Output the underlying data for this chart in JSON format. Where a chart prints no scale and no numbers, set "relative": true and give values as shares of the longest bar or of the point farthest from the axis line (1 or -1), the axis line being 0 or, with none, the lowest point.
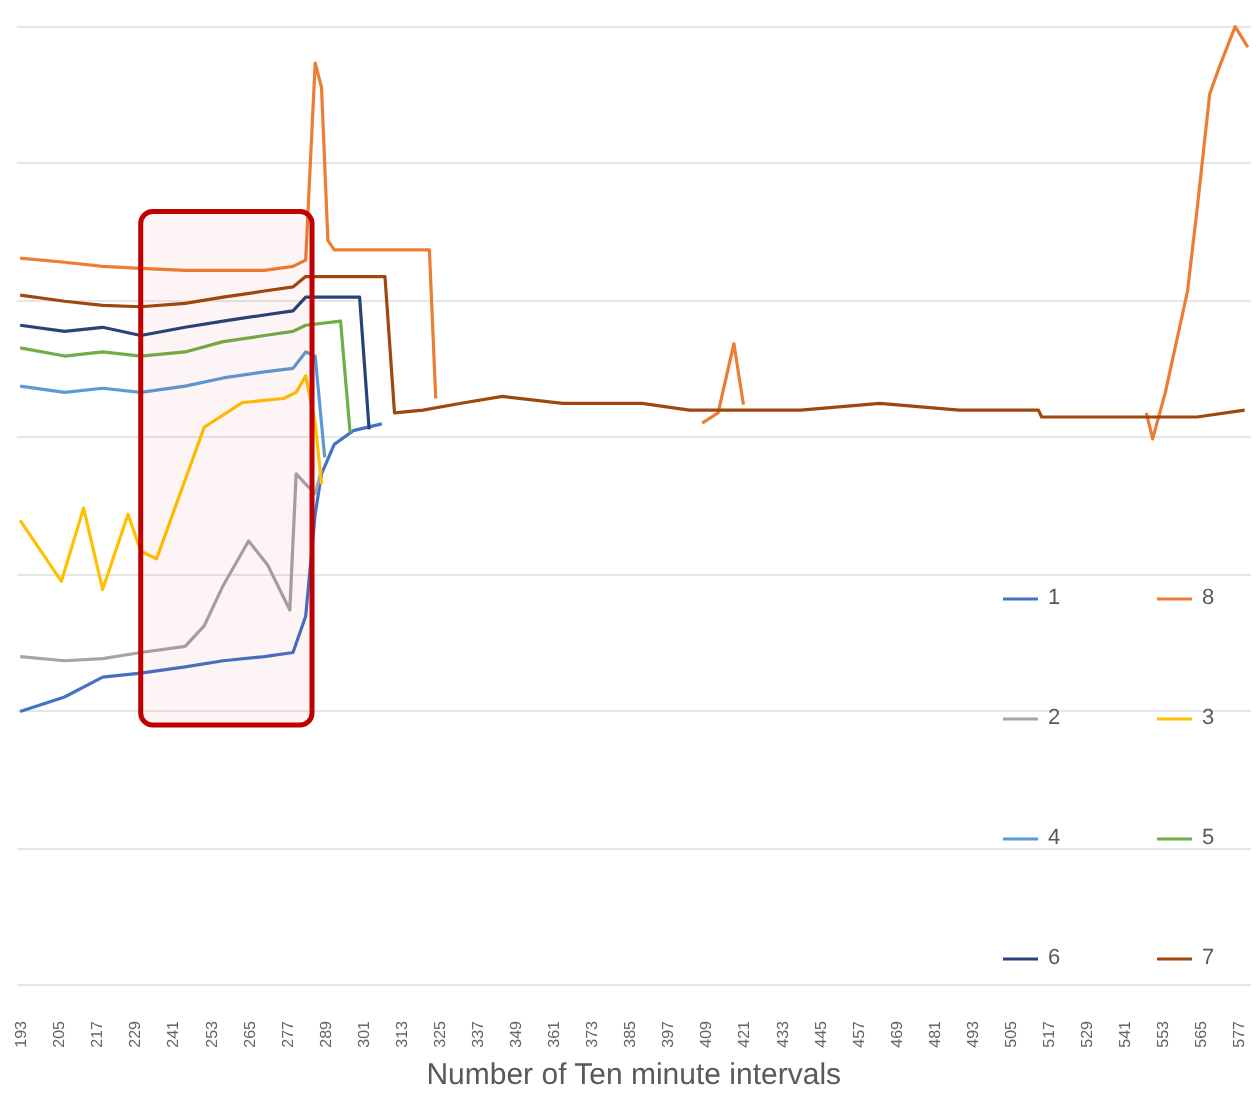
{
  "chart_data": {
    "type": "line",
    "relative": true,
    "xlabel": "Number of Ten minute intervals",
    "xlim": [
      192,
      581
    ],
    "xticks": [
      193,
      205,
      217,
      229,
      241,
      253,
      265,
      277,
      289,
      301,
      313,
      325,
      337,
      349,
      361,
      373,
      385,
      397,
      409,
      421,
      433,
      445,
      457,
      469,
      481,
      493,
      505,
      517,
      529,
      541,
      553,
      565,
      577
    ],
    "grid": "y",
    "legend": "bottom right",
    "bands": [
      {
        "axis": "x",
        "from": 231,
        "to": 285,
        "color": "#c00000"
      }
    ],
    "series": [
      {
        "name": "1",
        "color": "#4472c4",
        "x": [
          193,
          207,
          219,
          231,
          245,
          257,
          270,
          279,
          283,
          286,
          288,
          292,
          298,
          307
        ],
        "values": [
          0.0,
          0.021,
          0.05,
          0.056,
          0.065,
          0.074,
          0.08,
          0.086,
          0.139,
          0.288,
          0.347,
          0.39,
          0.41,
          0.42
        ]
      },
      {
        "name": "8",
        "color": "#ed7d31",
        "x": [
          193,
          207,
          219,
          231,
          245,
          257,
          270,
          279,
          283,
          286,
          288,
          290,
          292,
          322,
          324,
          332,
          404,
          408,
          413,
          418,
          421,
          439,
          546,
          548,
          550,
          554,
          561,
          564,
          568,
          571,
          576,
          580
        ],
        "values": [
          0.662,
          0.656,
          0.65,
          0.647,
          0.644,
          0.644,
          0.644,
          0.65,
          0.659,
          0.947,
          0.911,
          0.688,
          0.674,
          0.674,
          0.457,
          null,
          null,
          0.421,
          0.436,
          0.537,
          0.448,
          null,
          null,
          0.436,
          0.398,
          0.466,
          0.614,
          0.733,
          0.902,
          0.941,
          1.0,
          0.97
        ]
      },
      {
        "name": "2",
        "color": "#a5a5a5",
        "x": [
          193,
          207,
          219,
          231,
          245,
          251,
          257,
          265,
          271,
          278,
          280,
          283,
          286,
          288
        ],
        "values": [
          0.08,
          0.074,
          0.077,
          0.086,
          0.095,
          0.125,
          0.184,
          0.249,
          0.214,
          0.148,
          0.347,
          0.332,
          0.318,
          0.353
        ]
      },
      {
        "name": "3",
        "color": "#ffc000",
        "x": [
          193,
          206,
          213,
          219,
          227,
          231,
          236,
          245,
          251,
          263,
          276,
          280,
          283,
          286,
          288
        ],
        "values": [
          0.279,
          0.19,
          0.297,
          0.178,
          0.288,
          0.234,
          0.223,
          0.338,
          0.415,
          0.451,
          0.457,
          0.466,
          0.49,
          0.421,
          0.332
        ]
      },
      {
        "name": "4",
        "color": "#5b9bd5",
        "x": [
          193,
          207,
          219,
          231,
          245,
          257,
          270,
          279,
          283,
          286,
          289
        ],
        "values": [
          0.475,
          0.466,
          0.472,
          0.466,
          0.475,
          0.487,
          0.496,
          0.501,
          0.525,
          0.519,
          0.371
        ]
      },
      {
        "name": "5",
        "color": "#70ad47",
        "x": [
          193,
          207,
          219,
          231,
          245,
          257,
          270,
          279,
          283,
          294,
          297
        ],
        "values": [
          0.531,
          0.519,
          0.525,
          0.519,
          0.525,
          0.54,
          0.549,
          0.555,
          0.564,
          0.57,
          0.407
        ]
      },
      {
        "name": "6",
        "color": "#264478",
        "x": [
          193,
          207,
          219,
          231,
          245,
          257,
          270,
          279,
          283,
          300,
          303
        ],
        "values": [
          0.564,
          0.555,
          0.561,
          0.549,
          0.561,
          0.57,
          0.579,
          0.585,
          0.605,
          0.605,
          0.412
        ]
      },
      {
        "name": "7",
        "color": "#9e480e",
        "x": [
          193,
          207,
          219,
          231,
          245,
          257,
          270,
          279,
          283,
          308,
          311,
          320,
          332,
          345,
          364,
          389,
          404,
          439,
          464,
          489,
          514,
          515,
          546,
          564,
          579
        ],
        "values": [
          0.608,
          0.599,
          0.593,
          0.591,
          0.596,
          0.605,
          0.614,
          0.62,
          0.635,
          0.635,
          0.436,
          0.44,
          0.45,
          0.46,
          0.45,
          0.45,
          0.44,
          0.44,
          0.45,
          0.44,
          0.44,
          0.43,
          0.43,
          0.43,
          0.44
        ]
      }
    ]
  }
}
